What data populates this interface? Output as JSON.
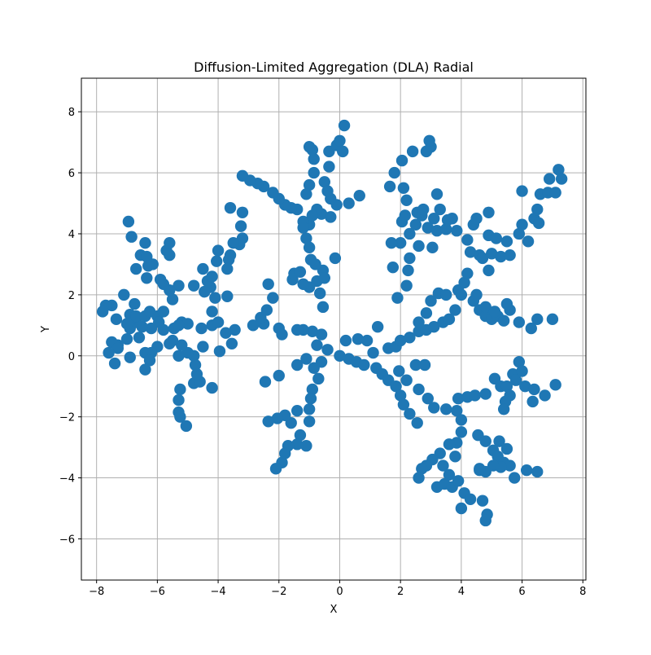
{
  "chart_data": {
    "type": "scatter",
    "title": "Diffusion-Limited Aggregation (DLA) Radial",
    "xlabel": "X",
    "ylabel": "Y",
    "xlim": [
      -8.5,
      8.1
    ],
    "ylim": [
      -7.35,
      9.1
    ],
    "xticks": [
      -8,
      -6,
      -4,
      -2,
      0,
      2,
      4,
      6,
      8
    ],
    "yticks": [
      -6,
      -4,
      -2,
      0,
      2,
      4,
      6,
      8
    ],
    "tick_labels_x": [
      "−8",
      "−6",
      "−4",
      "−2",
      "0",
      "2",
      "4",
      "6",
      "8"
    ],
    "tick_labels_y": [
      "−6",
      "−4",
      "−2",
      "0",
      "2",
      "4",
      "6",
      "8"
    ],
    "grid": true,
    "color": "#1f77b4",
    "points": [
      [
        0,
        0
      ],
      [
        0.3,
        -0.1
      ],
      [
        0.55,
        -0.2
      ],
      [
        0.8,
        -0.3
      ],
      [
        1.2,
        -0.4
      ],
      [
        1.4,
        -0.6
      ],
      [
        1.6,
        -0.8
      ],
      [
        1.85,
        -1.0
      ],
      [
        2.0,
        -1.3
      ],
      [
        2.1,
        -1.6
      ],
      [
        2.3,
        -1.9
      ],
      [
        2.55,
        -2.2
      ],
      [
        0.2,
        0.5
      ],
      [
        0.6,
        0.55
      ],
      [
        0.9,
        0.5
      ],
      [
        1.25,
        0.95
      ],
      [
        1.1,
        0.1
      ],
      [
        1.6,
        0.25
      ],
      [
        1.85,
        0.3
      ],
      [
        2.0,
        0.5
      ],
      [
        2.3,
        0.6
      ],
      [
        2.6,
        0.8
      ],
      [
        2.85,
        0.85
      ],
      [
        3.1,
        0.95
      ],
      [
        3.4,
        1.1
      ],
      [
        3.6,
        1.2
      ],
      [
        3.8,
        1.5
      ],
      [
        2.6,
        1.1
      ],
      [
        2.85,
        1.4
      ],
      [
        3.0,
        1.8
      ],
      [
        3.25,
        2.05
      ],
      [
        3.5,
        2.0
      ],
      [
        3.9,
        2.15
      ],
      [
        4.1,
        2.4
      ],
      [
        4.2,
        2.7
      ],
      [
        4.0,
        2.0
      ],
      [
        4.4,
        1.8
      ],
      [
        4.6,
        1.5
      ],
      [
        4.8,
        1.3
      ],
      [
        5.0,
        1.2
      ],
      [
        5.2,
        1.3
      ],
      [
        5.4,
        1.15
      ],
      [
        5.6,
        1.5
      ],
      [
        5.9,
        1.1
      ],
      [
        6.3,
        0.9
      ],
      [
        6.5,
        1.2
      ],
      [
        7.0,
        1.2
      ],
      [
        4.5,
        2.0
      ],
      [
        4.8,
        1.6
      ],
      [
        5.1,
        1.45
      ],
      [
        5.5,
        1.7
      ],
      [
        1.9,
        1.9
      ],
      [
        2.2,
        2.3
      ],
      [
        2.25,
        2.8
      ],
      [
        2.3,
        3.2
      ],
      [
        2.0,
        3.7
      ],
      [
        2.3,
        4.0
      ],
      [
        2.5,
        4.3
      ],
      [
        2.7,
        4.6
      ],
      [
        2.9,
        4.2
      ],
      [
        3.1,
        4.5
      ],
      [
        3.3,
        4.8
      ],
      [
        3.2,
        5.3
      ],
      [
        1.7,
        3.7
      ],
      [
        1.75,
        2.9
      ],
      [
        2.05,
        4.4
      ],
      [
        2.15,
        4.6
      ],
      [
        2.2,
        5.1
      ],
      [
        2.1,
        5.5
      ],
      [
        2.05,
        6.4
      ],
      [
        1.8,
        6.0
      ],
      [
        1.65,
        5.55
      ],
      [
        2.4,
        6.7
      ],
      [
        2.85,
        6.7
      ],
      [
        3.0,
        6.85
      ],
      [
        2.95,
        7.05
      ],
      [
        2.55,
        4.7
      ],
      [
        2.75,
        4.8
      ],
      [
        2.6,
        3.6
      ],
      [
        3.05,
        3.55
      ],
      [
        3.2,
        4.1
      ],
      [
        3.5,
        4.15
      ],
      [
        3.7,
        4.5
      ],
      [
        3.55,
        4.45
      ],
      [
        3.85,
        4.1
      ],
      [
        4.2,
        3.8
      ],
      [
        4.4,
        4.3
      ],
      [
        4.5,
        4.5
      ],
      [
        4.3,
        3.4
      ],
      [
        4.6,
        3.3
      ],
      [
        4.7,
        3.2
      ],
      [
        4.9,
        2.8
      ],
      [
        5.0,
        3.35
      ],
      [
        5.3,
        3.25
      ],
      [
        5.6,
        3.3
      ],
      [
        4.9,
        3.95
      ],
      [
        5.15,
        3.85
      ],
      [
        5.5,
        3.75
      ],
      [
        5.9,
        4.0
      ],
      [
        6.0,
        4.3
      ],
      [
        6.2,
        3.75
      ],
      [
        6.4,
        4.5
      ],
      [
        6.5,
        4.8
      ],
      [
        6.55,
        4.35
      ],
      [
        6.6,
        5.3
      ],
      [
        6.85,
        5.35
      ],
      [
        7.1,
        5.35
      ],
      [
        6.9,
        5.8
      ],
      [
        7.2,
        6.1
      ],
      [
        7.3,
        5.8
      ],
      [
        6.0,
        5.4
      ],
      [
        4.9,
        4.7
      ],
      [
        1.95,
        -0.5
      ],
      [
        2.2,
        -0.8
      ],
      [
        2.5,
        -0.3
      ],
      [
        2.8,
        -0.3
      ],
      [
        2.6,
        -1.1
      ],
      [
        2.9,
        -1.4
      ],
      [
        3.1,
        -1.7
      ],
      [
        3.5,
        -1.75
      ],
      [
        3.9,
        -1.4
      ],
      [
        4.2,
        -1.35
      ],
      [
        4.45,
        -1.3
      ],
      [
        4.8,
        -1.25
      ],
      [
        3.85,
        -1.8
      ],
      [
        4.0,
        -2.1
      ],
      [
        4.0,
        -2.5
      ],
      [
        3.85,
        -2.85
      ],
      [
        3.6,
        -2.9
      ],
      [
        3.3,
        -3.2
      ],
      [
        3.05,
        -3.4
      ],
      [
        2.85,
        -3.6
      ],
      [
        2.7,
        -3.7
      ],
      [
        2.6,
        -4.0
      ],
      [
        3.2,
        -4.3
      ],
      [
        3.45,
        -4.2
      ],
      [
        3.7,
        -4.3
      ],
      [
        3.6,
        -3.9
      ],
      [
        3.4,
        -3.6
      ],
      [
        3.8,
        -3.3
      ],
      [
        3.9,
        -4.1
      ],
      [
        4.1,
        -4.5
      ],
      [
        4.3,
        -4.7
      ],
      [
        4.0,
        -5.0
      ],
      [
        4.7,
        -4.75
      ],
      [
        4.85,
        -5.2
      ],
      [
        4.8,
        -5.4
      ],
      [
        4.55,
        -2.6
      ],
      [
        4.8,
        -2.8
      ],
      [
        5.05,
        -3.1
      ],
      [
        5.2,
        -3.3
      ],
      [
        5.4,
        -3.5
      ],
      [
        5.6,
        -3.6
      ],
      [
        5.75,
        -4.0
      ],
      [
        6.15,
        -3.75
      ],
      [
        6.5,
        -3.8
      ],
      [
        5.5,
        -3.05
      ],
      [
        5.25,
        -2.8
      ],
      [
        5.3,
        -3.65
      ],
      [
        4.6,
        -3.75
      ],
      [
        4.8,
        -3.8
      ],
      [
        5.05,
        -3.6
      ],
      [
        4.6,
        -3.7
      ],
      [
        5.1,
        -0.75
      ],
      [
        5.3,
        -1.0
      ],
      [
        5.5,
        -1.0
      ],
      [
        5.6,
        -1.3
      ],
      [
        5.45,
        -1.5
      ],
      [
        5.4,
        -1.75
      ],
      [
        5.7,
        -0.6
      ],
      [
        5.9,
        -0.2
      ],
      [
        6.0,
        -0.5
      ],
      [
        6.1,
        -1.0
      ],
      [
        6.35,
        -1.5
      ],
      [
        6.4,
        -1.1
      ],
      [
        6.75,
        -1.3
      ],
      [
        7.1,
        -0.95
      ],
      [
        5.8,
        -0.8
      ],
      [
        -0.4,
        0.2
      ],
      [
        -0.6,
        -0.2
      ],
      [
        -0.85,
        -0.4
      ],
      [
        -0.7,
        -0.75
      ],
      [
        -0.9,
        -1.1
      ],
      [
        -0.95,
        -1.4
      ],
      [
        -1.0,
        -1.75
      ],
      [
        -1.0,
        -2.15
      ],
      [
        -1.4,
        -1.8
      ],
      [
        -1.6,
        -2.2
      ],
      [
        -1.8,
        -1.95
      ],
      [
        -2.05,
        -2.05
      ],
      [
        -2.35,
        -2.15
      ],
      [
        -1.3,
        -2.6
      ],
      [
        -1.4,
        -2.9
      ],
      [
        -1.1,
        -2.95
      ],
      [
        -1.7,
        -2.95
      ],
      [
        -1.8,
        -3.2
      ],
      [
        -1.9,
        -3.5
      ],
      [
        -2.1,
        -3.7
      ],
      [
        -2.0,
        -0.65
      ],
      [
        -2.45,
        -0.85
      ],
      [
        -1.1,
        -0.1
      ],
      [
        -1.4,
        -0.3
      ],
      [
        -0.75,
        0.35
      ],
      [
        -0.6,
        0.7
      ],
      [
        -0.9,
        0.8
      ],
      [
        -1.2,
        0.85
      ],
      [
        -1.4,
        0.85
      ],
      [
        -2.0,
        0.9
      ],
      [
        -1.9,
        0.7
      ],
      [
        -2.5,
        1.05
      ],
      [
        -2.6,
        1.25
      ],
      [
        -2.4,
        1.5
      ],
      [
        -2.2,
        1.9
      ],
      [
        -2.35,
        2.35
      ],
      [
        -2.85,
        1.0
      ],
      [
        -0.55,
        1.6
      ],
      [
        -0.65,
        2.05
      ],
      [
        -0.75,
        2.45
      ],
      [
        -1.0,
        2.25
      ],
      [
        -1.2,
        2.35
      ],
      [
        -1.55,
        2.5
      ],
      [
        -1.5,
        2.7
      ],
      [
        -1.3,
        2.75
      ],
      [
        -0.55,
        2.8
      ],
      [
        -0.5,
        2.55
      ],
      [
        -0.8,
        3.0
      ],
      [
        -0.95,
        3.15
      ],
      [
        -1.0,
        3.55
      ],
      [
        -1.1,
        3.85
      ],
      [
        -1.0,
        4.3
      ],
      [
        -1.2,
        4.4
      ],
      [
        -1.4,
        4.8
      ],
      [
        -1.6,
        4.85
      ],
      [
        -1.8,
        4.95
      ],
      [
        -2.0,
        5.15
      ],
      [
        -2.2,
        5.35
      ],
      [
        -2.5,
        5.55
      ],
      [
        -2.7,
        5.65
      ],
      [
        -2.95,
        5.75
      ],
      [
        -3.2,
        5.9
      ],
      [
        -1.0,
        5.6
      ],
      [
        -1.1,
        5.3
      ],
      [
        -1.2,
        4.2
      ],
      [
        -0.6,
        4.65
      ],
      [
        -0.75,
        4.8
      ],
      [
        -0.9,
        4.6
      ],
      [
        -0.3,
        4.55
      ],
      [
        -0.1,
        4.95
      ],
      [
        -0.3,
        5.15
      ],
      [
        -0.5,
        5.7
      ],
      [
        -0.4,
        5.4
      ],
      [
        -0.85,
        6.0
      ],
      [
        -0.85,
        6.45
      ],
      [
        -0.9,
        6.75
      ],
      [
        -1.0,
        6.85
      ],
      [
        -0.35,
        6.2
      ],
      [
        -0.35,
        6.7
      ],
      [
        -0.1,
        6.9
      ],
      [
        0.0,
        7.05
      ],
      [
        0.1,
        6.7
      ],
      [
        0.15,
        7.55
      ],
      [
        0.3,
        5.0
      ],
      [
        0.65,
        5.25
      ],
      [
        -0.15,
        3.2
      ],
      [
        -3.2,
        4.7
      ],
      [
        -3.25,
        4.25
      ],
      [
        -3.2,
        3.85
      ],
      [
        -3.3,
        3.65
      ],
      [
        -3.6,
        4.85
      ],
      [
        -3.5,
        3.7
      ],
      [
        -3.6,
        3.3
      ],
      [
        -3.65,
        3.15
      ],
      [
        -3.7,
        2.85
      ],
      [
        -4.0,
        3.45
      ],
      [
        -4.05,
        3.1
      ],
      [
        -3.45,
        0.85
      ],
      [
        -3.75,
        0.75
      ],
      [
        -3.55,
        0.4
      ],
      [
        -3.7,
        1.95
      ],
      [
        -4.1,
        1.9
      ],
      [
        -4.2,
        1.45
      ],
      [
        -4.2,
        1.0
      ],
      [
        -4.0,
        1.1
      ],
      [
        -3.95,
        0.15
      ],
      [
        -4.25,
        2.25
      ],
      [
        -4.35,
        2.45
      ],
      [
        -4.5,
        2.85
      ],
      [
        -4.45,
        2.1
      ],
      [
        -4.2,
        2.6
      ],
      [
        -4.8,
        2.3
      ],
      [
        -4.55,
        0.9
      ],
      [
        -4.5,
        0.3
      ],
      [
        -4.2,
        -1.05
      ],
      [
        -4.8,
        -0.9
      ],
      [
        -4.6,
        -0.85
      ],
      [
        -4.7,
        -0.6
      ],
      [
        -4.75,
        -0.3
      ],
      [
        -4.8,
        0.0
      ],
      [
        -5.0,
        0.1
      ],
      [
        -5.3,
        0.0
      ],
      [
        -5.2,
        0.35
      ],
      [
        -5.5,
        0.5
      ],
      [
        -5.6,
        0.4
      ],
      [
        -5.45,
        0.9
      ],
      [
        -5.2,
        1.1
      ],
      [
        -5.0,
        1.05
      ],
      [
        -5.3,
        1.0
      ],
      [
        -5.3,
        2.3
      ],
      [
        -5.5,
        1.85
      ],
      [
        -5.6,
        2.15
      ],
      [
        -5.8,
        2.35
      ],
      [
        -5.9,
        2.5
      ],
      [
        -5.6,
        3.3
      ],
      [
        -5.7,
        3.45
      ],
      [
        -5.6,
        3.7
      ],
      [
        -6.0,
        1.3
      ],
      [
        -5.8,
        1.45
      ],
      [
        -5.8,
        0.85
      ],
      [
        -5.95,
        1.1
      ],
      [
        -6.0,
        0.3
      ],
      [
        -5.25,
        -1.1
      ],
      [
        -5.3,
        -1.45
      ],
      [
        -5.3,
        -1.85
      ],
      [
        -5.25,
        -2.0
      ],
      [
        -5.05,
        -2.3
      ],
      [
        -6.2,
        0.1
      ],
      [
        -6.4,
        0.1
      ],
      [
        -6.3,
        0.05
      ],
      [
        -6.25,
        -0.15
      ],
      [
        -6.4,
        -0.45
      ],
      [
        -6.2,
        0.9
      ],
      [
        -6.6,
        0.6
      ],
      [
        -6.5,
        0.95
      ],
      [
        -6.7,
        1.1
      ],
      [
        -6.85,
        1.2
      ],
      [
        -6.9,
        1.35
      ],
      [
        -6.9,
        0.9
      ],
      [
        -7.0,
        1.05
      ],
      [
        -6.7,
        1.3
      ],
      [
        -6.4,
        1.3
      ],
      [
        -6.25,
        1.45
      ],
      [
        -6.75,
        1.7
      ],
      [
        -6.55,
        3.3
      ],
      [
        -6.35,
        3.25
      ],
      [
        -6.15,
        3.0
      ],
      [
        -6.3,
        2.95
      ],
      [
        -6.35,
        2.55
      ],
      [
        -6.7,
        2.85
      ],
      [
        -6.85,
        3.9
      ],
      [
        -6.95,
        4.4
      ],
      [
        -6.4,
        3.7
      ],
      [
        -7.1,
        2.0
      ],
      [
        -7.0,
        0.55
      ],
      [
        -7.3,
        0.35
      ],
      [
        -7.5,
        0.45
      ],
      [
        -7.3,
        0.25
      ],
      [
        -7.6,
        0.1
      ],
      [
        -7.35,
        1.2
      ],
      [
        -7.5,
        1.65
      ],
      [
        -7.7,
        1.65
      ],
      [
        -7.8,
        1.45
      ],
      [
        -7.4,
        -0.25
      ],
      [
        -6.9,
        -0.05
      ]
    ]
  }
}
